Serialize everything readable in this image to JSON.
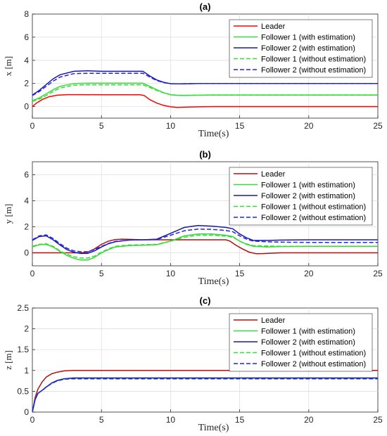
{
  "chart_data": [
    {
      "type": "line",
      "title": "(a)",
      "xlabel": "Time(s)",
      "ylabel": "x [m]",
      "xlim": [
        0,
        25
      ],
      "ylim": [
        -1,
        8
      ],
      "xticks": [
        0,
        5,
        10,
        15,
        20,
        25
      ],
      "yticks": [
        0,
        2,
        4,
        6,
        8
      ],
      "grid": true,
      "legend": "top-right",
      "series": [
        {
          "name": "Leader",
          "color": "#ff0000",
          "dash": "solid",
          "x": [
            0,
            0.3,
            0.7,
            1.2,
            1.8,
            2.5,
            3.5,
            5,
            6.5,
            7.8,
            8.1,
            8.5,
            9.0,
            9.5,
            10.0,
            10.5,
            11,
            12,
            13,
            15,
            20,
            25
          ],
          "y": [
            0,
            0.3,
            0.6,
            0.85,
            0.98,
            1.03,
            1.03,
            1.02,
            1.02,
            1.02,
            0.95,
            0.6,
            0.3,
            0.1,
            -0.02,
            -0.07,
            -0.05,
            -0.02,
            0,
            0,
            0,
            0
          ]
        },
        {
          "name": "Follower 1 (with estimation)",
          "color": "#33dd33",
          "dash": "solid",
          "x": [
            0,
            0.5,
            1,
            1.5,
            2,
            3,
            4,
            5,
            6,
            7,
            8,
            8.5,
            9,
            9.5,
            10,
            10.5,
            11,
            12,
            13,
            15,
            20,
            25
          ],
          "y": [
            0.5,
            0.75,
            1.1,
            1.45,
            1.75,
            2.0,
            2.02,
            2.02,
            2.02,
            2.02,
            2.02,
            1.75,
            1.45,
            1.2,
            1.02,
            0.97,
            0.96,
            0.98,
            1.0,
            1.0,
            1.0,
            1.0
          ]
        },
        {
          "name": "Follower 2 (with estimation)",
          "color": "#1a1aaa",
          "dash": "solid",
          "x": [
            0,
            0.5,
            1,
            1.5,
            2,
            3,
            4,
            5,
            6,
            7,
            8,
            8.5,
            9,
            9.5,
            10,
            10.5,
            11,
            12,
            13,
            15,
            20,
            25
          ],
          "y": [
            1.0,
            1.4,
            1.9,
            2.4,
            2.75,
            3.05,
            3.1,
            3.05,
            3.05,
            3.05,
            3.05,
            2.65,
            2.3,
            2.1,
            1.98,
            1.96,
            1.97,
            1.99,
            2.0,
            2.0,
            2.0,
            2.0
          ]
        },
        {
          "name": "Follower 1 (without estimation)",
          "color": "#33dd33",
          "dash": "dashed",
          "x": [
            0,
            0.5,
            1,
            1.5,
            2,
            3,
            4,
            5,
            6,
            7,
            8,
            8.5,
            9,
            9.5,
            10,
            10.5,
            11,
            12,
            13,
            15,
            20,
            25
          ],
          "y": [
            0.45,
            0.65,
            0.95,
            1.3,
            1.6,
            1.85,
            1.88,
            1.88,
            1.88,
            1.88,
            1.88,
            1.65,
            1.4,
            1.18,
            1.03,
            0.98,
            0.97,
            0.98,
            1.0,
            1.0,
            1.0,
            1.0
          ]
        },
        {
          "name": "Follower 2 (without estimation)",
          "color": "#2222ee",
          "dash": "dashed",
          "x": [
            0,
            0.5,
            1,
            1.5,
            2,
            3,
            4,
            5,
            6,
            7,
            8,
            8.5,
            9,
            9.5,
            10,
            10.5,
            11,
            12,
            13,
            15,
            20,
            25
          ],
          "y": [
            0.95,
            1.3,
            1.75,
            2.2,
            2.55,
            2.85,
            2.88,
            2.88,
            2.88,
            2.88,
            2.88,
            2.55,
            2.25,
            2.07,
            1.98,
            1.97,
            1.98,
            2.0,
            2.0,
            2.0,
            2.0,
            2.0
          ]
        }
      ]
    },
    {
      "type": "line",
      "title": "(b)",
      "xlabel": "Time(s)",
      "ylabel": "y [m]",
      "xlim": [
        0,
        25
      ],
      "ylim": [
        -1,
        7
      ],
      "xticks": [
        0,
        5,
        10,
        15,
        20,
        25
      ],
      "yticks": [
        0,
        2,
        4,
        6
      ],
      "grid": true,
      "legend": "top-right",
      "series": [
        {
          "name": "Leader",
          "color": "#b01010",
          "dash": "solid",
          "x": [
            0,
            3.5,
            4,
            4.5,
            5,
            5.5,
            6,
            6.5,
            7,
            8,
            9,
            10,
            12,
            14,
            14.3,
            14.7,
            15.2,
            15.7,
            16.2,
            16.7,
            17.2,
            18,
            20,
            25
          ],
          "y": [
            0,
            0,
            0.05,
            0.3,
            0.65,
            0.9,
            1.02,
            1.05,
            1.03,
            1.0,
            1.0,
            1.0,
            1.0,
            1.0,
            0.9,
            0.6,
            0.3,
            0.05,
            -0.07,
            -0.06,
            -0.03,
            0,
            0,
            0
          ]
        },
        {
          "name": "Follower 1 (with estimation)",
          "color": "#33dd33",
          "dash": "solid",
          "x": [
            0,
            0.5,
            1,
            1.5,
            2,
            2.5,
            3,
            3.5,
            4,
            4.5,
            5,
            5.5,
            6,
            7,
            8,
            9,
            10,
            11,
            12,
            13,
            14,
            14.5,
            15,
            15.5,
            16,
            17,
            18,
            20,
            25
          ],
          "y": [
            0.45,
            0.62,
            0.65,
            0.45,
            0.1,
            -0.2,
            -0.42,
            -0.55,
            -0.55,
            -0.35,
            0.0,
            0.25,
            0.45,
            0.55,
            0.58,
            0.62,
            0.9,
            1.3,
            1.45,
            1.45,
            1.35,
            1.25,
            0.9,
            0.65,
            0.5,
            0.45,
            0.48,
            0.5,
            0.5
          ]
        },
        {
          "name": "Follower 2 (with estimation)",
          "color": "#1a1aaa",
          "dash": "solid",
          "x": [
            0,
            0.5,
            1,
            1.5,
            2,
            2.5,
            3,
            3.5,
            4,
            4.5,
            5,
            5.5,
            6,
            7,
            8,
            9,
            10,
            11,
            12,
            13,
            14,
            14.5,
            15,
            15.5,
            16,
            17,
            18,
            20,
            25
          ],
          "y": [
            0.95,
            1.25,
            1.3,
            1.0,
            0.6,
            0.25,
            0.05,
            -0.05,
            -0.05,
            0.15,
            0.45,
            0.7,
            0.85,
            0.98,
            1.0,
            1.05,
            1.5,
            1.95,
            2.1,
            2.05,
            1.95,
            1.85,
            1.45,
            1.15,
            0.95,
            0.95,
            0.98,
            1.0,
            1.0
          ]
        },
        {
          "name": "Follower 1 (without estimation)",
          "color": "#33dd33",
          "dash": "dashed",
          "x": [
            0,
            0.5,
            1,
            1.5,
            2,
            2.5,
            3,
            3.5,
            4,
            4.5,
            5,
            5.5,
            6,
            7,
            8,
            9,
            10,
            11,
            12,
            13,
            14,
            14.5,
            15,
            15.5,
            16,
            17,
            18,
            20,
            25
          ],
          "y": [
            0.5,
            0.65,
            0.7,
            0.5,
            0.15,
            -0.1,
            -0.3,
            -0.4,
            -0.4,
            -0.25,
            0.05,
            0.3,
            0.5,
            0.6,
            0.62,
            0.65,
            0.9,
            1.2,
            1.35,
            1.35,
            1.28,
            1.2,
            0.9,
            0.68,
            0.55,
            0.52,
            0.5,
            0.5,
            0.5
          ]
        },
        {
          "name": "Follower 2 (without estimation)",
          "color": "#2222ee",
          "dash": "dashed",
          "x": [
            0,
            0.5,
            1,
            1.5,
            2,
            2.5,
            3,
            3.5,
            4,
            4.5,
            5,
            5.5,
            6,
            7,
            8,
            9,
            10,
            11,
            12,
            13,
            14,
            14.5,
            15,
            15.5,
            16,
            17,
            18,
            20,
            25
          ],
          "y": [
            1.0,
            1.3,
            1.38,
            1.1,
            0.7,
            0.35,
            0.15,
            0.08,
            0.08,
            0.25,
            0.5,
            0.72,
            0.88,
            0.98,
            1.0,
            1.02,
            1.35,
            1.7,
            1.82,
            1.8,
            1.72,
            1.62,
            1.3,
            1.05,
            0.9,
            0.85,
            0.82,
            0.8,
            0.8
          ]
        }
      ]
    },
    {
      "type": "line",
      "title": "(c)",
      "xlabel": "Time(s)",
      "ylabel": "z [m]",
      "xlim": [
        0,
        25
      ],
      "ylim": [
        0,
        2.5
      ],
      "xticks": [
        0,
        5,
        10,
        15,
        20,
        25
      ],
      "yticks": [
        0,
        0.5,
        1,
        1.5,
        2,
        2.5
      ],
      "grid": true,
      "legend": "top-right",
      "series": [
        {
          "name": "Leader",
          "color": "#b01010",
          "dash": "solid",
          "x": [
            0,
            0.2,
            0.4,
            0.7,
            1.0,
            1.4,
            1.8,
            2.3,
            3.0,
            4,
            25
          ],
          "y": [
            0,
            0.35,
            0.55,
            0.72,
            0.84,
            0.92,
            0.96,
            0.99,
            1.0,
            1.0,
            1.0
          ]
        },
        {
          "name": "Follower 1 (with estimation)",
          "color": "#33dd33",
          "dash": "solid",
          "x": [
            0,
            0.2,
            0.4,
            0.7,
            1.0,
            1.4,
            1.8,
            2.3,
            3.0,
            4,
            25
          ],
          "y": [
            0,
            0.3,
            0.45,
            0.52,
            0.6,
            0.7,
            0.76,
            0.8,
            0.82,
            0.82,
            0.82
          ]
        },
        {
          "name": "Follower 2 (with estimation)",
          "color": "#1a1aaa",
          "dash": "solid",
          "x": [
            0,
            0.2,
            0.4,
            0.7,
            1.0,
            1.4,
            1.8,
            2.3,
            3.0,
            4,
            25
          ],
          "y": [
            0,
            0.3,
            0.45,
            0.52,
            0.6,
            0.7,
            0.76,
            0.8,
            0.82,
            0.82,
            0.82
          ]
        },
        {
          "name": "Follower 1 (without estimation)",
          "color": "#33dd33",
          "dash": "dashed",
          "x": [
            0,
            0.2,
            0.4,
            0.7,
            1.0,
            1.4,
            1.8,
            2.3,
            3.0,
            4,
            25
          ],
          "y": [
            0,
            0.3,
            0.45,
            0.52,
            0.6,
            0.69,
            0.75,
            0.79,
            0.8,
            0.8,
            0.8
          ]
        },
        {
          "name": "Follower 2 (without estimation)",
          "color": "#2222ee",
          "dash": "dashed",
          "x": [
            0,
            0.2,
            0.4,
            0.7,
            1.0,
            1.4,
            1.8,
            2.3,
            3.0,
            4,
            25
          ],
          "y": [
            0,
            0.3,
            0.45,
            0.52,
            0.6,
            0.69,
            0.75,
            0.79,
            0.8,
            0.8,
            0.8
          ]
        }
      ]
    }
  ]
}
